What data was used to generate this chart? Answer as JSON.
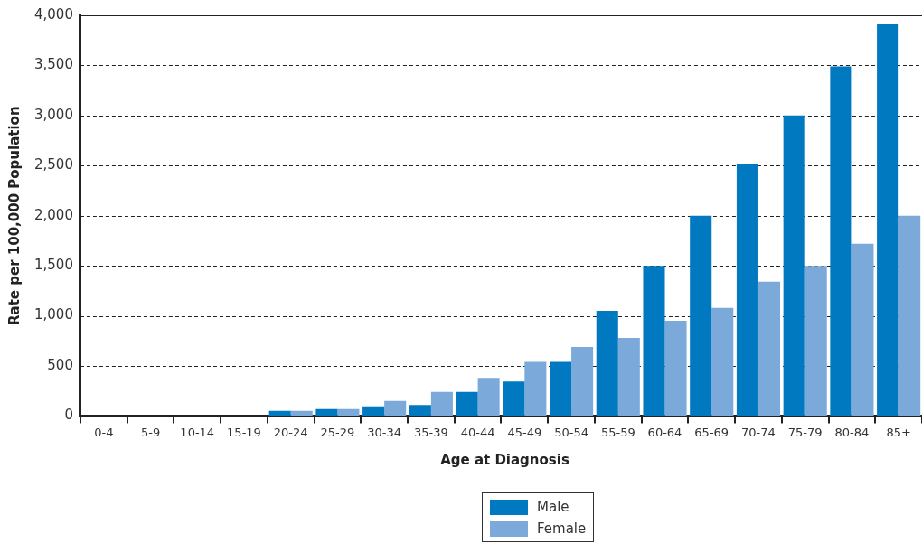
{
  "chart_data": {
    "type": "bar",
    "xlabel": "Age at Diagnosis",
    "ylabel": "Rate per 100,000 Population",
    "categories": [
      "0-4",
      "5-9",
      "10-14",
      "15-19",
      "20-24",
      "25-29",
      "30-34",
      "35-39",
      "40-44",
      "45-49",
      "50-54",
      "55-59",
      "60-64",
      "65-69",
      "70-74",
      "75-79",
      "80-84",
      "85+"
    ],
    "series": [
      {
        "name": "Male",
        "color": "#0079c1",
        "values": [
          0,
          0,
          0,
          0,
          50,
          70,
          95,
          110,
          240,
          345,
          540,
          1050,
          1500,
          2000,
          2520,
          3000,
          3490,
          3910
        ]
      },
      {
        "name": "Female",
        "color": "#7aa9da",
        "values": [
          0,
          0,
          0,
          0,
          50,
          70,
          150,
          240,
          380,
          540,
          690,
          780,
          950,
          1080,
          1340,
          1500,
          1720,
          2000
        ]
      }
    ],
    "ylim": [
      0,
      4000
    ],
    "yticks": [
      {
        "value": 0,
        "label": "0"
      },
      {
        "value": 500,
        "label": "500"
      },
      {
        "value": 1000,
        "label": "1,000"
      },
      {
        "value": 1500,
        "label": "1,500"
      },
      {
        "value": 2000,
        "label": "2,000"
      },
      {
        "value": 2500,
        "label": "2,500"
      },
      {
        "value": 3000,
        "label": "3,000"
      },
      {
        "value": 3500,
        "label": "3,500"
      },
      {
        "value": 4000,
        "label": "4,000"
      }
    ],
    "grid": "y",
    "legend": "bottom"
  }
}
